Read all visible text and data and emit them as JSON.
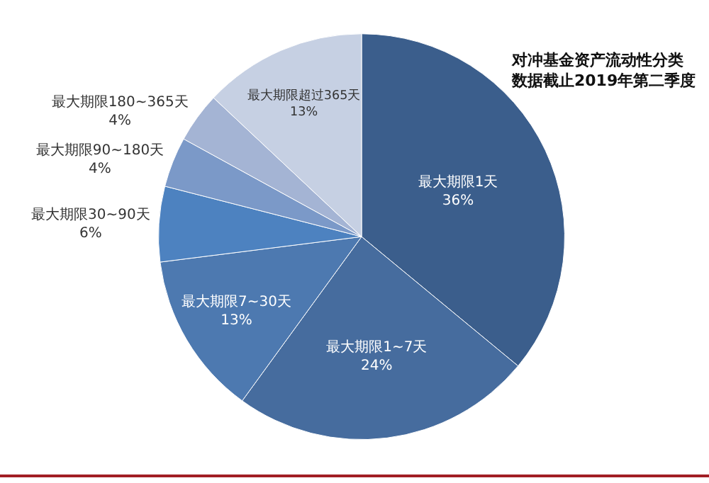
{
  "chart_data": {
    "type": "pie",
    "title": "对冲基金资产流动性分类",
    "subtitle": "数据截止2019年第二季度",
    "categories": [
      "最大期限1天",
      "最大期限1~7天",
      "最大期限7~30天",
      "最大期限30~90天",
      "最大期限90~180天",
      "最大期限180~365天",
      "最大期限超过365天"
    ],
    "values": [
      36,
      24,
      13,
      6,
      4,
      4,
      13
    ],
    "value_labels": [
      "36%",
      "24%",
      "13%",
      "6%",
      "4%",
      "4%",
      "13%"
    ],
    "colors": [
      "#3b5e8c",
      "#466c9e",
      "#4d79b0",
      "#4d82c0",
      "#7b99c8",
      "#a4b4d4",
      "#c6d0e3"
    ],
    "legend": false
  }
}
